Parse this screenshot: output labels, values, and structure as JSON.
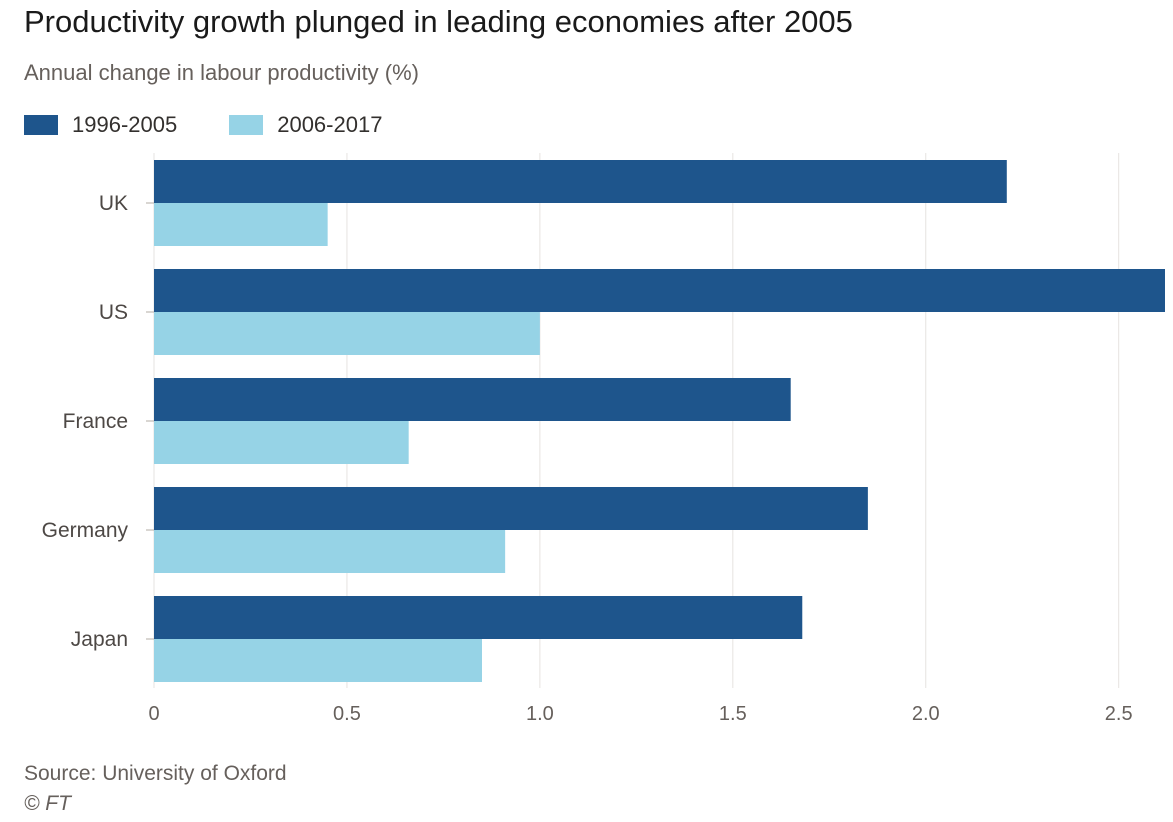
{
  "title": "Productivity growth plunged in leading economies after 2005",
  "subtitle": "Annual change in labour productivity (%)",
  "source": "Source: University of Oxford",
  "credit": "© FT",
  "colors": {
    "series1": "#1e558c",
    "series2": "#96d3e6",
    "grid": "#e6e3e0",
    "axis_text": "#66605c"
  },
  "chart_data": {
    "type": "bar",
    "orientation": "horizontal",
    "categories": [
      "UK",
      "US",
      "France",
      "Germany",
      "Japan"
    ],
    "series": [
      {
        "name": "1996-2005",
        "values": [
          2.21,
          2.62,
          1.65,
          1.85,
          1.68
        ]
      },
      {
        "name": "2006-2017",
        "values": [
          0.45,
          1.0,
          0.66,
          0.91,
          0.85
        ]
      }
    ],
    "xlim": [
      0,
      2.62
    ],
    "xticks": [
      0,
      0.5,
      1.0,
      1.5,
      2.0,
      2.5
    ],
    "xtick_labels": [
      "0",
      "0.5",
      "1.0",
      "1.5",
      "2.0",
      "2.5"
    ],
    "grid": true,
    "legend_position": "top-left"
  }
}
